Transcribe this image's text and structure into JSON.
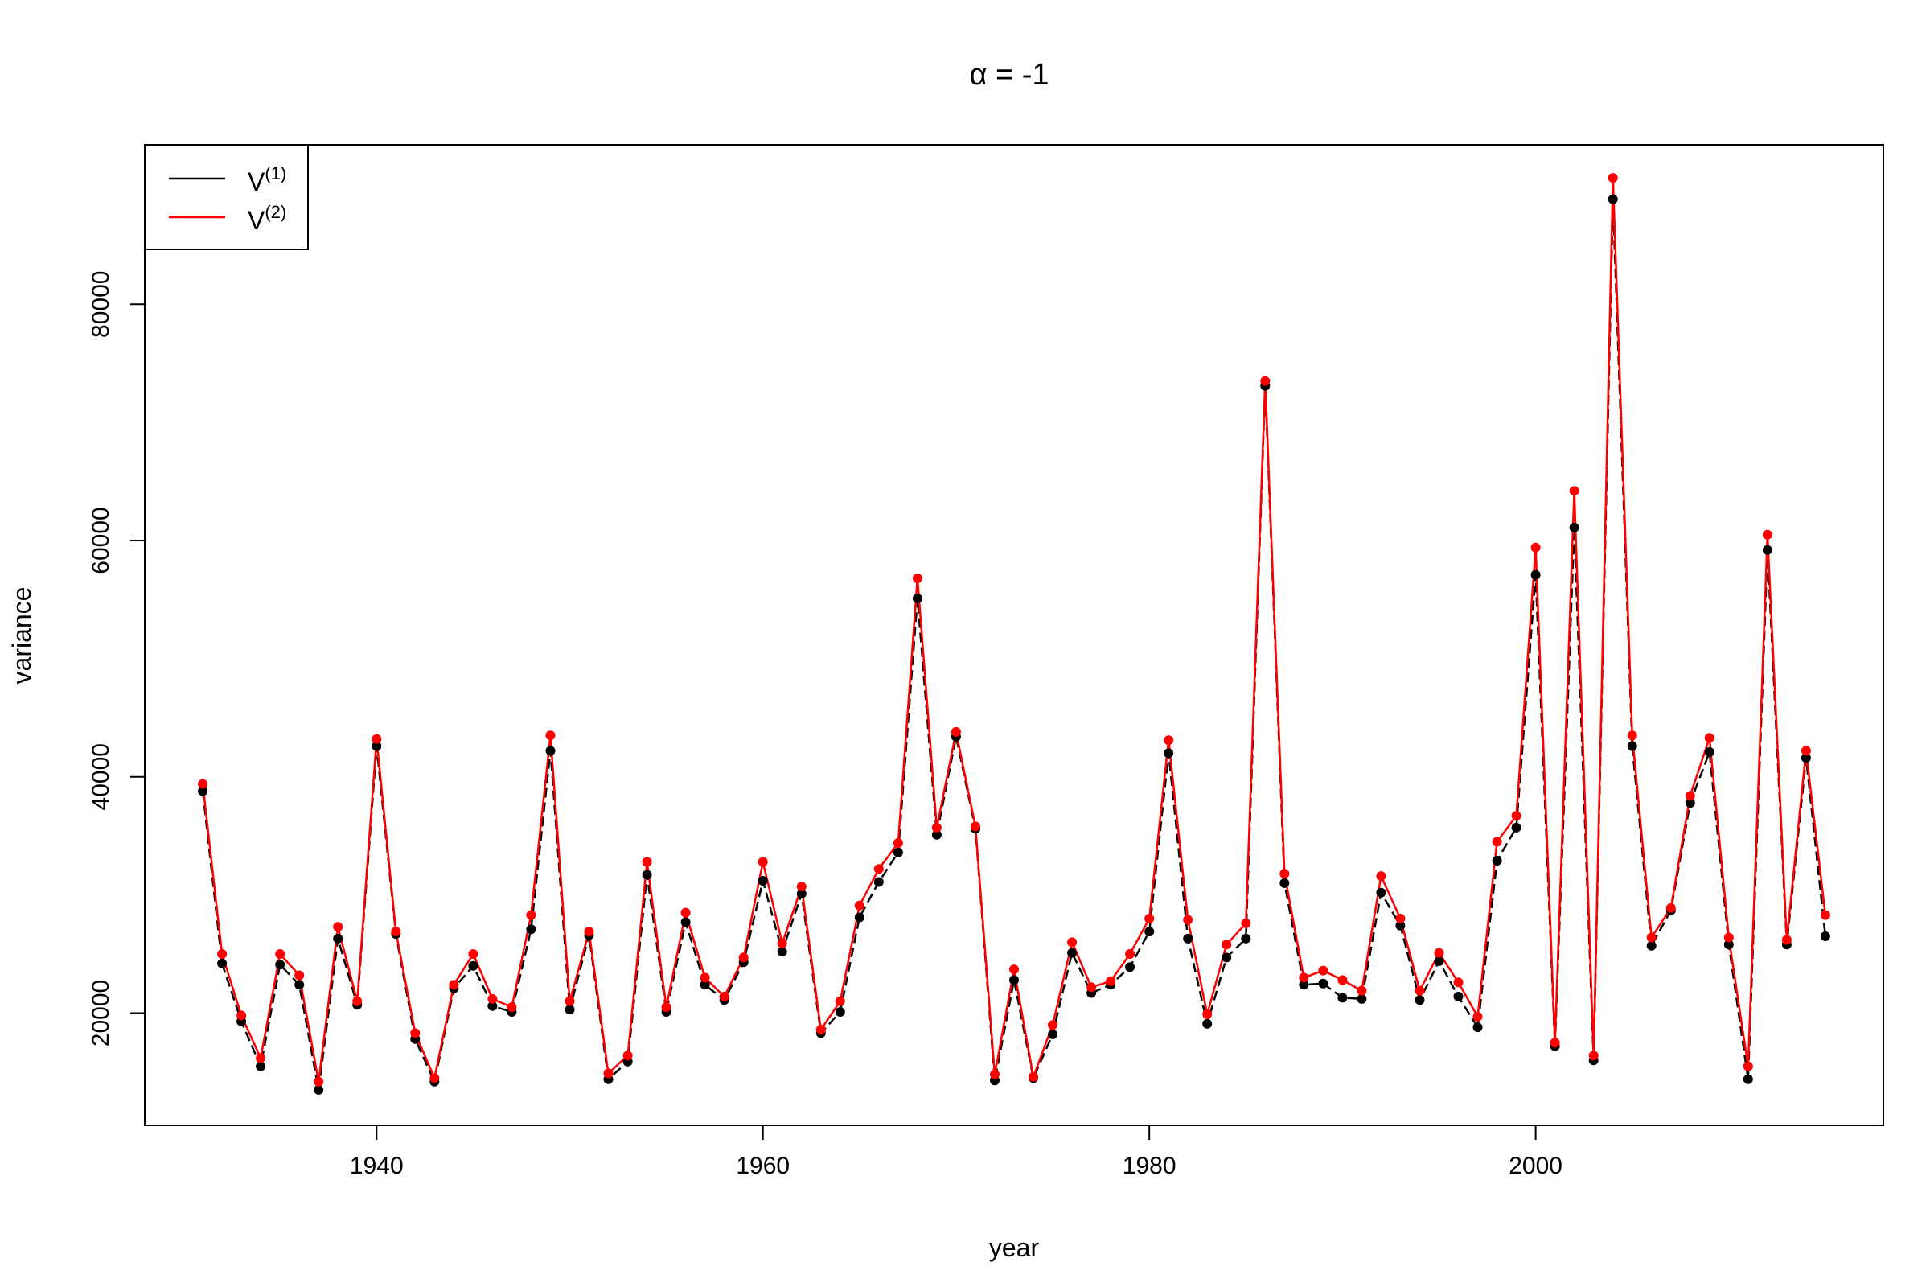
{
  "chart_data": {
    "type": "line",
    "title": "α = -1",
    "xlabel": "year",
    "ylabel": "variance",
    "xlim": [
      1928,
      2018
    ],
    "ylim": [
      10500,
      93500
    ],
    "x_ticks": [
      1940,
      1960,
      1980,
      2000
    ],
    "y_ticks": [
      20000,
      40000,
      60000,
      80000
    ],
    "x_tick_labels": [
      "1940",
      "1960",
      "1980",
      "2000"
    ],
    "y_tick_labels": [
      "20000",
      "40000",
      "60000",
      "80000"
    ],
    "grid": false,
    "legend": {
      "position": "top-left",
      "entries": [
        {
          "base": "V",
          "sup": "(1)",
          "color": "#000000"
        },
        {
          "base": "V",
          "sup": "(2)",
          "color": "#ff0000"
        }
      ]
    },
    "x": [
      1931,
      1932,
      1933,
      1934,
      1935,
      1936,
      1937,
      1938,
      1939,
      1940,
      1941,
      1942,
      1943,
      1944,
      1945,
      1946,
      1947,
      1948,
      1949,
      1950,
      1951,
      1952,
      1953,
      1954,
      1955,
      1956,
      1957,
      1958,
      1959,
      1960,
      1961,
      1962,
      1963,
      1964,
      1965,
      1966,
      1967,
      1968,
      1969,
      1970,
      1971,
      1972,
      1973,
      1974,
      1975,
      1976,
      1977,
      1978,
      1979,
      1980,
      1981,
      1982,
      1983,
      1984,
      1985,
      1986,
      1987,
      1988,
      1989,
      1990,
      1991,
      1992,
      1993,
      1994,
      1995,
      1996,
      1997,
      1998,
      1999,
      2000,
      2001,
      2002,
      2003,
      2004,
      2005,
      2006,
      2007,
      2008,
      2009,
      2010,
      2011,
      2012,
      2013,
      2014,
      2015
    ],
    "series": [
      {
        "name": "V(1)",
        "color": "#000000",
        "line_style": "dashed",
        "values": [
          38800,
          24200,
          19300,
          15500,
          24100,
          22400,
          13500,
          26300,
          20700,
          42600,
          26700,
          17800,
          14200,
          22100,
          24000,
          20600,
          20100,
          27100,
          42200,
          20300,
          26600,
          14400,
          15900,
          31700,
          20100,
          27700,
          22400,
          21100,
          24300,
          31200,
          25200,
          30100,
          18300,
          20100,
          28100,
          31100,
          33600,
          55100,
          35100,
          43400,
          35600,
          14300,
          22800,
          14500,
          18200,
          25100,
          21700,
          22400,
          23900,
          26900,
          42000,
          26300,
          19100,
          24700,
          26300,
          73100,
          31000,
          22400,
          22500,
          21300,
          21200,
          30200,
          27400,
          21100,
          24400,
          21400,
          18800,
          32900,
          35700,
          57100,
          17200,
          61100,
          16000,
          88900,
          42600,
          25700,
          28700,
          37800,
          42100,
          25800,
          14400,
          59200,
          25800,
          41600,
          26500
        ]
      },
      {
        "name": "V(2)",
        "color": "#ff0000",
        "line_style": "solid",
        "values": [
          39400,
          25000,
          19800,
          16200,
          25000,
          23200,
          14200,
          27300,
          21000,
          43200,
          26900,
          18300,
          14500,
          22400,
          25000,
          21200,
          20500,
          28300,
          43500,
          21000,
          26900,
          14900,
          16400,
          32800,
          20500,
          28500,
          23000,
          21400,
          24700,
          32800,
          25900,
          30700,
          18600,
          21000,
          29100,
          32200,
          34400,
          56800,
          35700,
          43800,
          35800,
          14800,
          23700,
          14600,
          19000,
          26000,
          22200,
          22700,
          25000,
          28000,
          43100,
          27900,
          19900,
          25800,
          27600,
          73500,
          31800,
          23000,
          23600,
          22800,
          21900,
          31600,
          28000,
          21900,
          25100,
          22600,
          19700,
          34500,
          36700,
          59400,
          17500,
          64200,
          16400,
          90700,
          43500,
          26400,
          28900,
          38400,
          43300,
          26400,
          15500,
          60500,
          26200,
          42200,
          28300
        ]
      }
    ]
  }
}
